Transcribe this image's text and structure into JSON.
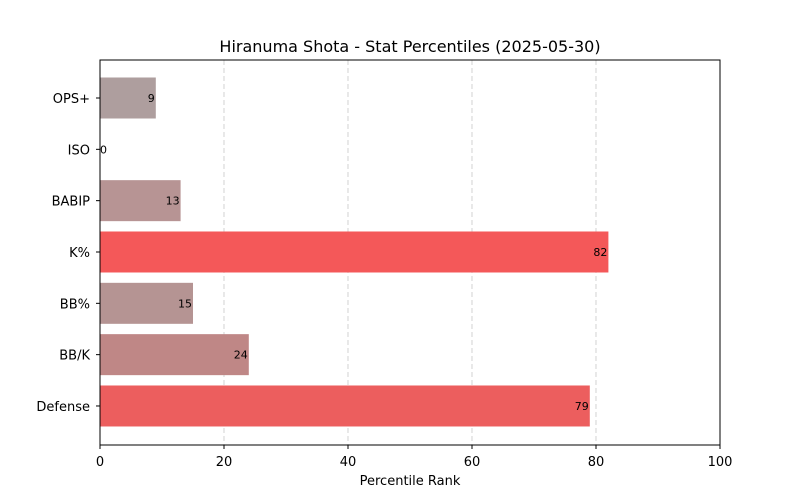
{
  "chart_data": {
    "type": "bar",
    "orientation": "horizontal",
    "title": "Hiranuma Shota - Stat Percentiles (2025-05-30)",
    "xlabel": "Percentile Rank",
    "ylabel": "",
    "xlim": [
      0,
      100
    ],
    "xticks": [
      0,
      20,
      40,
      60,
      80,
      100
    ],
    "grid": "x-dashed",
    "categories": [
      "OPS+",
      "ISO",
      "BABIP",
      "K%",
      "BB%",
      "BB/K",
      "Defense"
    ],
    "values": [
      9,
      0,
      13,
      82,
      15,
      24,
      79
    ],
    "colors": [
      "#ae9e9e",
      "#aea0a0",
      "#b79494",
      "#f45859",
      "#b59493",
      "#bf8786",
      "#ec5e5e"
    ]
  }
}
